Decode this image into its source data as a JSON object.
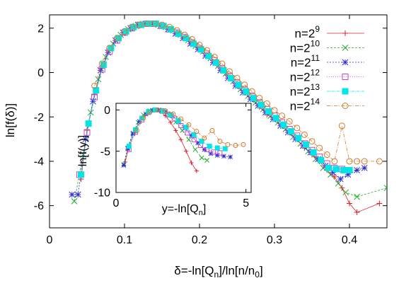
{
  "chart_data": [
    {
      "type": "scatter",
      "xlabel": "δ=-ln[Q_n]/ln[n/n_0]",
      "ylabel": "ln[f(δ)]",
      "xlim": [
        0,
        0.45
      ],
      "ylim": [
        -7,
        2.6
      ],
      "xticks": [
        "0",
        "0.1",
        "0.2",
        "0.3",
        "0.4"
      ],
      "xtick_values": [
        0,
        0.1,
        0.2,
        0.3,
        0.4
      ],
      "yticks": [
        "2",
        "0",
        "-2",
        "-4",
        "-6"
      ],
      "ytick_values": [
        2,
        0,
        -2,
        -4,
        -6
      ],
      "legend_position": "top-right",
      "series": [
        {
          "name": "n=2^9",
          "base": "n=2",
          "exp": "9",
          "color": "#e0202a",
          "marker": "plus",
          "x": [
            0.042,
            0.05,
            0.06,
            0.07,
            0.08,
            0.09,
            0.1,
            0.11,
            0.12,
            0.13,
            0.14,
            0.15,
            0.16,
            0.17,
            0.18,
            0.19,
            0.2,
            0.21,
            0.22,
            0.23,
            0.24,
            0.25,
            0.26,
            0.27,
            0.28,
            0.29,
            0.3,
            0.31,
            0.32,
            0.33,
            0.34,
            0.35,
            0.36,
            0.37,
            0.38,
            0.39,
            0.4,
            0.41,
            0.44
          ],
          "y": [
            -4.8,
            -2.6,
            -1.0,
            0.2,
            1.0,
            1.5,
            1.8,
            2.0,
            2.1,
            2.2,
            2.2,
            2.1,
            1.95,
            1.8,
            1.55,
            1.3,
            1.05,
            0.8,
            0.45,
            0.1,
            -0.25,
            -0.6,
            -0.9,
            -1.2,
            -1.55,
            -1.9,
            -2.1,
            -2.4,
            -2.7,
            -3.0,
            -3.4,
            -3.7,
            -4.0,
            -4.4,
            -4.7,
            -5.2,
            -5.9,
            -6.3,
            -5.9
          ]
        },
        {
          "name": "n=2^10",
          "base": "n=2",
          "exp": "10",
          "color": "#1faa2c",
          "marker": "x",
          "x": [
            0.033,
            0.045,
            0.055,
            0.065,
            0.075,
            0.085,
            0.095,
            0.105,
            0.115,
            0.125,
            0.135,
            0.145,
            0.155,
            0.165,
            0.175,
            0.185,
            0.195,
            0.205,
            0.215,
            0.225,
            0.235,
            0.245,
            0.255,
            0.265,
            0.275,
            0.285,
            0.295,
            0.305,
            0.315,
            0.325,
            0.335,
            0.345,
            0.355,
            0.365,
            0.375,
            0.385,
            0.395,
            0.41,
            0.45
          ],
          "y": [
            -5.8,
            -3.7,
            -1.8,
            -0.3,
            0.7,
            1.3,
            1.7,
            1.95,
            2.1,
            2.2,
            2.2,
            2.15,
            2.05,
            1.9,
            1.7,
            1.45,
            1.2,
            0.95,
            0.65,
            0.3,
            -0.05,
            -0.4,
            -0.75,
            -1.05,
            -1.35,
            -1.65,
            -1.95,
            -2.25,
            -2.55,
            -2.9,
            -3.2,
            -3.55,
            -3.9,
            -4.3,
            -4.6,
            -5.0,
            -5.4,
            -5.6,
            -5.2
          ]
        },
        {
          "name": "n=2^11",
          "base": "n=2",
          "exp": "11",
          "color": "#2a2ad6",
          "marker": "star",
          "x": [
            0.03,
            0.038,
            0.048,
            0.058,
            0.068,
            0.078,
            0.088,
            0.098,
            0.108,
            0.118,
            0.128,
            0.138,
            0.148,
            0.158,
            0.168,
            0.178,
            0.188,
            0.198,
            0.208,
            0.218,
            0.228,
            0.238,
            0.248,
            0.258,
            0.268,
            0.278,
            0.288,
            0.298,
            0.308,
            0.318,
            0.328,
            0.338,
            0.348,
            0.358,
            0.368,
            0.378,
            0.388,
            0.398,
            0.41,
            0.42
          ],
          "y": [
            -5.5,
            -5.5,
            -3.0,
            -1.3,
            0.1,
            0.9,
            1.45,
            1.8,
            2.0,
            2.15,
            2.2,
            2.2,
            2.1,
            1.95,
            1.75,
            1.55,
            1.3,
            1.05,
            0.75,
            0.45,
            0.1,
            -0.25,
            -0.6,
            -0.9,
            -1.2,
            -1.5,
            -1.8,
            -2.1,
            -2.4,
            -2.7,
            -3.0,
            -3.3,
            -3.6,
            -3.9,
            -4.2,
            -4.5,
            -4.8,
            -4.6,
            -4.4,
            -4.3
          ]
        },
        {
          "name": "n=2^12",
          "base": "n=2",
          "exp": "12",
          "color": "#cc44cc",
          "marker": "square-open",
          "x": [
            0.04,
            0.05,
            0.06,
            0.07,
            0.08,
            0.09,
            0.1,
            0.11,
            0.12,
            0.13,
            0.14,
            0.15,
            0.16,
            0.17,
            0.18,
            0.19,
            0.2,
            0.21,
            0.22,
            0.23,
            0.24,
            0.25,
            0.26,
            0.27,
            0.28,
            0.29,
            0.3,
            0.31,
            0.32,
            0.33,
            0.34,
            0.35,
            0.36,
            0.37,
            0.38,
            0.39
          ],
          "y": [
            -4.6,
            -2.7,
            -1.1,
            0.15,
            0.95,
            1.45,
            1.8,
            2.0,
            2.15,
            2.2,
            2.2,
            2.1,
            1.95,
            1.8,
            1.6,
            1.35,
            1.1,
            0.85,
            0.55,
            0.2,
            -0.15,
            -0.45,
            -0.75,
            -1.05,
            -1.35,
            -1.65,
            -1.95,
            -2.25,
            -2.55,
            -2.85,
            -3.2,
            -3.5,
            -3.8,
            -4.1,
            -4.3,
            -4.35
          ]
        },
        {
          "name": "n=2^13",
          "base": "n=2",
          "exp": "13",
          "color": "#00e6e6",
          "marker": "square-filled",
          "x": [
            0.042,
            0.052,
            0.062,
            0.072,
            0.082,
            0.092,
            0.102,
            0.112,
            0.122,
            0.132,
            0.142,
            0.152,
            0.162,
            0.172,
            0.182,
            0.192,
            0.202,
            0.212,
            0.222,
            0.232,
            0.242,
            0.252,
            0.262,
            0.272,
            0.282,
            0.292,
            0.302,
            0.312,
            0.322,
            0.332,
            0.342,
            0.352,
            0.362,
            0.372,
            0.382,
            0.392,
            0.4
          ],
          "y": [
            -4.6,
            -2.3,
            -0.8,
            0.35,
            1.1,
            1.55,
            1.85,
            2.05,
            2.15,
            2.2,
            2.2,
            2.1,
            1.95,
            1.75,
            1.55,
            1.3,
            1.05,
            0.75,
            0.45,
            0.1,
            -0.25,
            -0.55,
            -0.85,
            -1.15,
            -1.45,
            -1.75,
            -2.05,
            -2.35,
            -2.65,
            -2.95,
            -3.25,
            -3.6,
            -3.95,
            -4.3,
            -4.35,
            -4.4,
            -4.4
          ]
        },
        {
          "name": "n=2^14",
          "base": "n=2",
          "exp": "14",
          "color": "#d27a2a",
          "marker": "circle-open",
          "x": [
            0.06,
            0.07,
            0.08,
            0.09,
            0.1,
            0.11,
            0.12,
            0.13,
            0.14,
            0.15,
            0.16,
            0.17,
            0.18,
            0.19,
            0.2,
            0.21,
            0.22,
            0.23,
            0.24,
            0.25,
            0.26,
            0.27,
            0.28,
            0.29,
            0.3,
            0.31,
            0.32,
            0.33,
            0.34,
            0.35,
            0.36,
            0.37,
            0.38,
            0.39,
            0.4,
            0.41,
            0.42,
            0.44
          ],
          "y": [
            -0.6,
            0.4,
            1.1,
            1.55,
            1.85,
            2.05,
            2.15,
            2.2,
            2.2,
            2.15,
            2.05,
            1.9,
            1.7,
            1.5,
            1.25,
            1.0,
            0.7,
            0.4,
            0.05,
            -0.25,
            -0.55,
            -0.85,
            -1.15,
            -1.4,
            -1.7,
            -1.95,
            -2.2,
            -2.5,
            -2.8,
            -3.1,
            -3.4,
            -3.7,
            -4.0,
            -2.4,
            -4.0,
            -4.0,
            -4.0,
            -4.0
          ]
        }
      ]
    },
    {
      "type": "scatter",
      "xlabel": "y=-ln[Q_n]",
      "ylabel": "ln[f(y)]",
      "xlim": [
        0,
        5.2
      ],
      "ylim": [
        -10,
        0.8
      ],
      "xticks": [
        "0",
        "5"
      ],
      "xtick_values": [
        0,
        5
      ],
      "yticks": [
        "0",
        "-5",
        "-10"
      ],
      "ytick_values": [
        0,
        -5,
        -10
      ],
      "series": [
        {
          "name": "n=2^9",
          "color": "#e0202a",
          "marker": "plus",
          "x": [
            0.35,
            0.5,
            0.7,
            0.9,
            1.1,
            1.3,
            1.5,
            1.7,
            1.9,
            2.1,
            2.3,
            2.5,
            2.7,
            2.9,
            3.1
          ],
          "y": [
            -6.3,
            -4.5,
            -2.8,
            -1.5,
            -0.7,
            -0.2,
            0.0,
            -0.2,
            -0.7,
            -1.5,
            -2.5,
            -3.6,
            -5.0,
            -6.4,
            -7.4
          ]
        },
        {
          "name": "n=2^10",
          "color": "#1faa2c",
          "marker": "x",
          "x": [
            0.3,
            0.45,
            0.65,
            0.85,
            1.05,
            1.3,
            1.55,
            1.8,
            2.05,
            2.3,
            2.55,
            2.8,
            3.05,
            3.3,
            3.5
          ],
          "y": [
            -6.6,
            -4.6,
            -2.8,
            -1.5,
            -0.6,
            -0.1,
            0.0,
            -0.2,
            -0.7,
            -1.5,
            -2.5,
            -3.6,
            -4.8,
            -5.8,
            -6.1
          ]
        },
        {
          "name": "n=2^11",
          "color": "#2a2ad6",
          "marker": "star",
          "x": [
            0.3,
            0.45,
            0.65,
            0.9,
            1.15,
            1.4,
            1.65,
            1.9,
            2.15,
            2.4,
            2.65,
            2.9,
            3.15,
            3.4,
            3.65,
            3.9,
            4.15,
            4.4
          ],
          "y": [
            -6.7,
            -4.7,
            -2.9,
            -1.4,
            -0.5,
            -0.05,
            0.0,
            -0.2,
            -0.7,
            -1.4,
            -2.2,
            -3.1,
            -4.0,
            -4.8,
            -5.3,
            -5.5,
            -5.6,
            -5.7
          ]
        },
        {
          "name": "n=2^12",
          "color": "#cc44cc",
          "marker": "square-open",
          "x": [
            0.5,
            0.75,
            1.0,
            1.25,
            1.5,
            1.75,
            2.0,
            2.25,
            2.5,
            2.75,
            3.0,
            3.25,
            3.5,
            3.75,
            4.0
          ],
          "y": [
            -4.8,
            -2.7,
            -1.2,
            -0.3,
            0.0,
            -0.1,
            -0.5,
            -1.1,
            -1.9,
            -2.8,
            -3.6,
            -4.3,
            -4.8,
            -5.1,
            -5.2
          ]
        },
        {
          "name": "n=2^13",
          "color": "#00e6e6",
          "marker": "square-filled",
          "x": [
            0.5,
            0.75,
            1.0,
            1.25,
            1.5,
            1.8,
            2.1,
            2.4,
            2.7,
            3.0,
            3.3,
            3.6,
            3.9,
            4.2
          ],
          "y": [
            -4.4,
            -2.4,
            -1.0,
            -0.2,
            0.0,
            -0.15,
            -0.6,
            -1.3,
            -2.1,
            -3.0,
            -3.8,
            -4.4,
            -4.6,
            -4.7
          ]
        },
        {
          "name": "n=2^14",
          "color": "#d27a2a",
          "marker": "circle-open",
          "x": [
            0.8,
            1.05,
            1.3,
            1.6,
            1.9,
            2.2,
            2.5,
            2.8,
            3.1,
            3.4,
            3.7,
            4.0,
            4.3,
            4.6,
            4.9
          ],
          "y": [
            -2.5,
            -1.0,
            -0.3,
            0.0,
            -0.1,
            -0.5,
            -1.1,
            -1.8,
            -2.6,
            -3.4,
            -2.5,
            -3.8,
            -4.2,
            -4.3,
            -4.2
          ]
        }
      ]
    }
  ]
}
